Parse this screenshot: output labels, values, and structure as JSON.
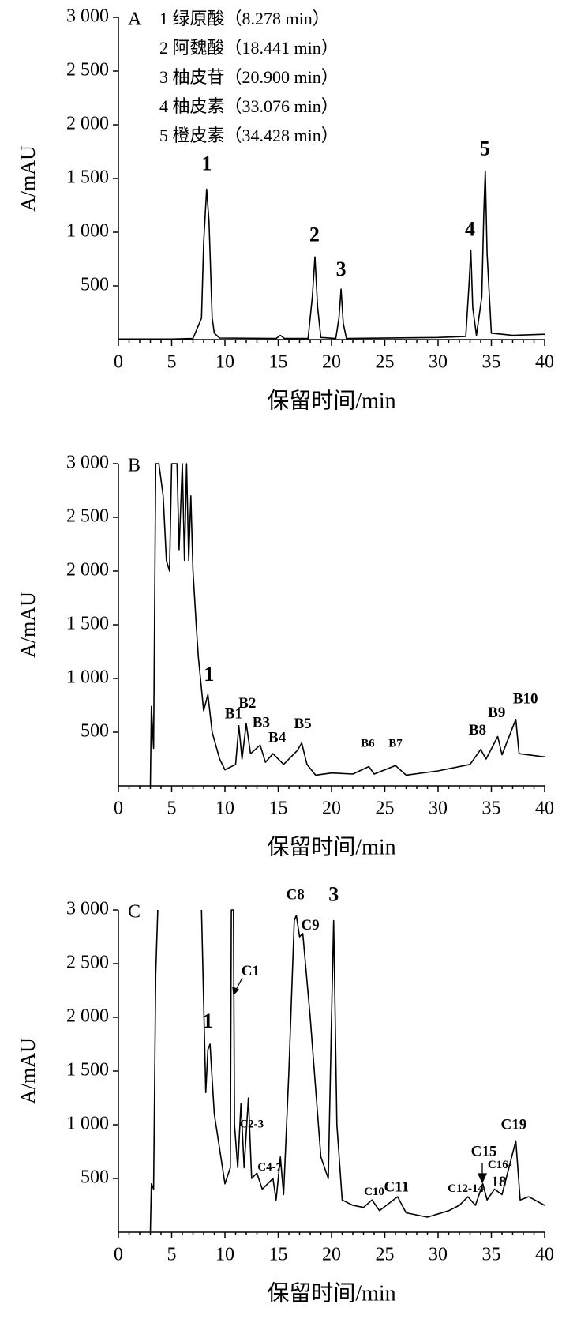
{
  "chart_data": [
    {
      "type": "line",
      "panel": "A",
      "ylabel": "A/mAU",
      "xlabel": "保留时间/min",
      "color": "#000000",
      "legend": [
        "1 绿原酸（8.278 min）",
        "2 阿魏酸（18.441 min）",
        "3 柚皮苷（20.900 min）",
        "4 柚皮素（33.076 min）",
        "5 橙皮素（34.428 min）"
      ],
      "xlim": [
        0,
        40
      ],
      "xticks": [
        0,
        5,
        10,
        15,
        20,
        25,
        30,
        35,
        40
      ],
      "ylim": [
        0,
        3000
      ],
      "yticks": [
        500,
        {
          "value": 1000,
          "label": "1 000"
        },
        {
          "value": 1500,
          "label": "1 500"
        },
        {
          "value": 2000,
          "label": "2 000"
        },
        {
          "value": 2500,
          "label": "2 500"
        },
        {
          "value": 3000,
          "label": "3 000"
        }
      ],
      "x": [
        0,
        5,
        7,
        7.8,
        8.0,
        8.278,
        8.5,
        8.8,
        9,
        9.5,
        14.8,
        15.2,
        15.6,
        17.8,
        18.2,
        18.441,
        18.7,
        19,
        20.4,
        20.7,
        20.9,
        21.1,
        21.4,
        30,
        32.6,
        32.9,
        33.076,
        33.25,
        33.6,
        34.1,
        34.3,
        34.428,
        34.6,
        35,
        37,
        40
      ],
      "values": [
        5,
        5,
        10,
        200,
        900,
        1400,
        1100,
        200,
        60,
        15,
        10,
        40,
        10,
        10,
        400,
        770,
        300,
        20,
        10,
        200,
        470,
        150,
        10,
        20,
        30,
        500,
        830,
        300,
        40,
        400,
        1200,
        1570,
        800,
        60,
        40,
        50
      ],
      "annotations": [
        {
          "label": "1",
          "x": 8.3,
          "y": 1620
        },
        {
          "label": "2",
          "x": 18.4,
          "y": 960
        },
        {
          "label": "3",
          "x": 20.9,
          "y": 640
        },
        {
          "label": "4",
          "x": 33.0,
          "y": 1010
        },
        {
          "label": "5",
          "x": 34.4,
          "y": 1760
        }
      ]
    },
    {
      "type": "line",
      "panel": "B",
      "ylabel": "A/mAU",
      "xlabel": "保留时间/min",
      "color": "#000000",
      "xlim": [
        0,
        40
      ],
      "xticks": [
        0,
        5,
        10,
        15,
        20,
        25,
        30,
        35,
        40
      ],
      "ylim": [
        0,
        3000
      ],
      "yticks": [
        500,
        {
          "value": 1000,
          "label": "1 000"
        },
        {
          "value": 1500,
          "label": "1 500"
        },
        {
          "value": 2000,
          "label": "2 000"
        },
        {
          "value": 2500,
          "label": "2 500"
        },
        {
          "value": 3000,
          "label": "3 000"
        }
      ],
      "x": [
        3.0,
        3.1,
        3.3,
        3.5,
        3.6,
        3.8,
        4.2,
        4.5,
        4.8,
        5.0,
        5.5,
        5.7,
        6.0,
        6.2,
        6.4,
        6.6,
        6.8,
        7.0,
        7.3,
        7.5,
        8.0,
        8.4,
        8.8,
        9.5,
        10,
        11,
        11.3,
        11.6,
        12,
        12.4,
        13.3,
        13.8,
        14.5,
        15.5,
        16.8,
        17.2,
        17.7,
        18.5,
        20,
        22,
        23.5,
        24,
        26,
        27,
        30,
        33,
        34,
        34.5,
        35.6,
        36,
        37.3,
        37.6,
        40
      ],
      "values": [
        0,
        740,
        350,
        3000,
        3000,
        3000,
        2700,
        2100,
        2000,
        3000,
        3000,
        2200,
        3000,
        2100,
        3000,
        2100,
        2700,
        2000,
        1500,
        1200,
        700,
        850,
        500,
        250,
        150,
        200,
        560,
        250,
        580,
        300,
        380,
        220,
        300,
        200,
        330,
        400,
        200,
        100,
        120,
        110,
        180,
        110,
        190,
        100,
        140,
        200,
        340,
        250,
        460,
        290,
        620,
        300,
        270
      ],
      "annotations": [
        {
          "label": "1",
          "x": 8.5,
          "y": 1020
        },
        {
          "label": "B1",
          "x": 10.8,
          "y": 660
        },
        {
          "label": "B2",
          "x": 12.1,
          "y": 760
        },
        {
          "label": "B3",
          "x": 13.4,
          "y": 580
        },
        {
          "label": "B4",
          "x": 14.9,
          "y": 440
        },
        {
          "label": "B5",
          "x": 17.3,
          "y": 570
        },
        {
          "label": "B6",
          "x": 23.4,
          "y": 390
        },
        {
          "label": "B7",
          "x": 26.0,
          "y": 390
        },
        {
          "label": "B8",
          "x": 33.7,
          "y": 510
        },
        {
          "label": "B9",
          "x": 35.5,
          "y": 670
        },
        {
          "label": "B10",
          "x": 38.2,
          "y": 800
        }
      ]
    },
    {
      "type": "line",
      "panel": "C",
      "ylabel": "A/mAU",
      "xlabel": "保留时间/min",
      "color": "#000000",
      "xlim": [
        0,
        40
      ],
      "xticks": [
        0,
        5,
        10,
        15,
        20,
        25,
        30,
        35,
        40
      ],
      "ylim": [
        0,
        3000
      ],
      "yticks": [
        500,
        {
          "value": 1000,
          "label": "1 000"
        },
        {
          "value": 1500,
          "label": "1 500"
        },
        {
          "value": 2000,
          "label": "2 000"
        },
        {
          "value": 2500,
          "label": "2 500"
        },
        {
          "value": 3000,
          "label": "3 000"
        }
      ],
      "x": [
        3.0,
        3.1,
        3.3,
        3.5,
        3.7,
        5,
        7.8,
        8.2,
        8.4,
        8.6,
        9,
        10,
        10.5,
        10.6,
        10.8,
        10.9,
        11.2,
        11.5,
        11.8,
        12.2,
        12.5,
        13,
        13.5,
        14,
        14.5,
        14.8,
        15.2,
        15.5,
        16,
        16.5,
        16.7,
        17,
        17.3,
        18,
        19,
        19.7,
        20.0,
        20.2,
        20.5,
        21,
        22,
        23,
        23.8,
        24.5,
        26.2,
        27,
        29,
        31,
        32,
        32.8,
        33.5,
        34.2,
        34.6,
        35.3,
        36,
        37.3,
        37.7,
        38.5,
        40
      ],
      "values": [
        0,
        450,
        400,
        2400,
        3000,
        null,
        3000,
        1300,
        1700,
        1750,
        1100,
        450,
        600,
        3000,
        3000,
        1000,
        600,
        1200,
        600,
        1250,
        500,
        550,
        400,
        450,
        500,
        300,
        700,
        350,
        1500,
        2900,
        2950,
        2750,
        2780,
        2000,
        700,
        500,
        2000,
        2900,
        1000,
        300,
        250,
        230,
        300,
        200,
        330,
        180,
        140,
        200,
        250,
        330,
        250,
        450,
        300,
        400,
        350,
        850,
        300,
        330,
        250
      ],
      "annotations": [
        {
          "label": "1",
          "x": 8.4,
          "y": 1950
        },
        {
          "label": "C1",
          "x": 12.4,
          "y": 2420
        },
        {
          "label": "C2-3",
          "x": 12.5,
          "y": 1000
        },
        {
          "label": "C4-7",
          "x": 14.2,
          "y": 600
        },
        {
          "label": "C8",
          "x": 16.6,
          "y": 3130
        },
        {
          "label": "C9",
          "x": 18.0,
          "y": 2850
        },
        {
          "label": "3",
          "x": 20.2,
          "y": 3130
        },
        {
          "label": "C10",
          "x": 24.0,
          "y": 370
        },
        {
          "label": "C11",
          "x": 26.1,
          "y": 410
        },
        {
          "label": "C12-14",
          "x": 32.6,
          "y": 400
        },
        {
          "label": "C15",
          "x": 34.3,
          "y": 740
        },
        {
          "label": "C16-",
          "x": 35.8,
          "y": 620
        },
        {
          "label": "18",
          "x": 35.7,
          "y": 460
        },
        {
          "label": "C19",
          "x": 37.1,
          "y": 990
        }
      ]
    }
  ]
}
